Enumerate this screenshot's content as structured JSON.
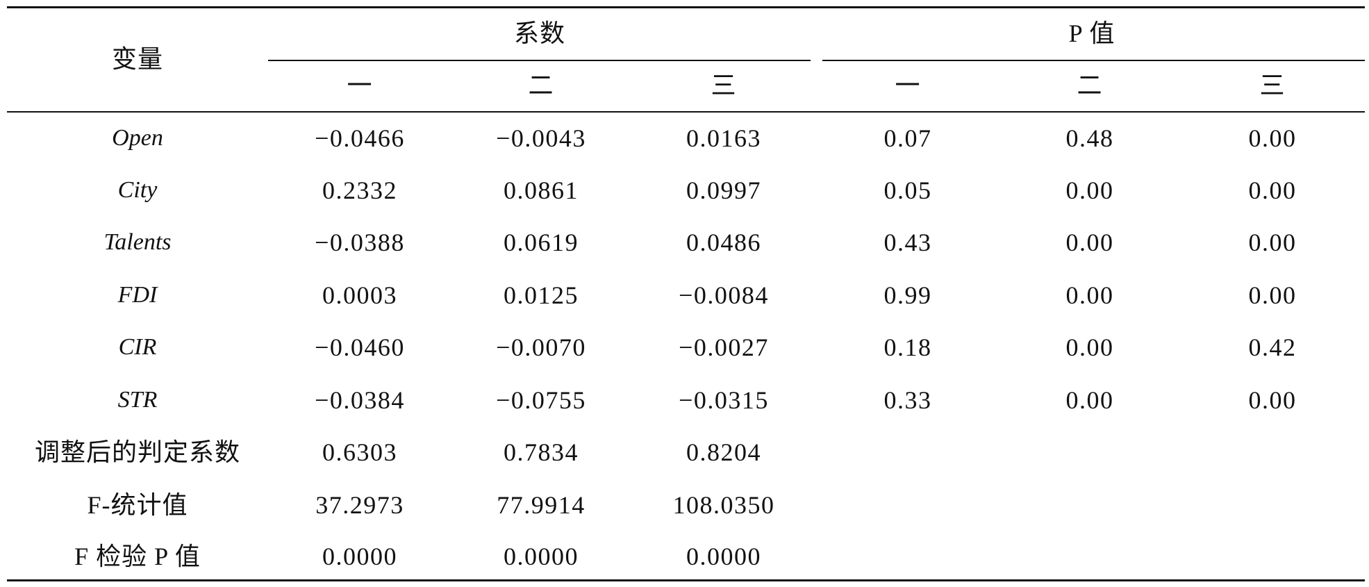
{
  "table": {
    "header": {
      "variable_label": "变量",
      "group_coef": "系数",
      "group_p": "P 值",
      "sub_coef": [
        "一",
        "二",
        "三"
      ],
      "sub_p": [
        "一",
        "二",
        "三"
      ]
    },
    "rows": [
      {
        "label": "Open",
        "italic": true,
        "values": [
          "−0.0466",
          "−0.0043",
          "0.0163",
          "0.07",
          "0.48",
          "0.00"
        ]
      },
      {
        "label": "City",
        "italic": true,
        "values": [
          "0.2332",
          "0.0861",
          "0.0997",
          "0.05",
          "0.00",
          "0.00"
        ]
      },
      {
        "label": "Talents",
        "italic": true,
        "values": [
          "−0.0388",
          "0.0619",
          "0.0486",
          "0.43",
          "0.00",
          "0.00"
        ]
      },
      {
        "label": "FDI",
        "italic": true,
        "values": [
          "0.0003",
          "0.0125",
          "−0.0084",
          "0.99",
          "0.00",
          "0.00"
        ]
      },
      {
        "label": "CIR",
        "italic": true,
        "values": [
          "−0.0460",
          "−0.0070",
          "−0.0027",
          "0.18",
          "0.00",
          "0.42"
        ]
      },
      {
        "label": "STR",
        "italic": true,
        "values": [
          "−0.0384",
          "−0.0755",
          "−0.0315",
          "0.33",
          "0.00",
          "0.00"
        ]
      },
      {
        "label": "调整后的判定系数",
        "italic": false,
        "values": [
          "0.6303",
          "0.7834",
          "0.8204"
        ]
      },
      {
        "label": "F-统计值",
        "italic": false,
        "values": [
          "37.2973",
          "77.9914",
          "108.0350"
        ]
      },
      {
        "label": "F 检验 P 值",
        "italic": false,
        "values": [
          "0.0000",
          "0.0000",
          "0.0000"
        ]
      }
    ]
  }
}
